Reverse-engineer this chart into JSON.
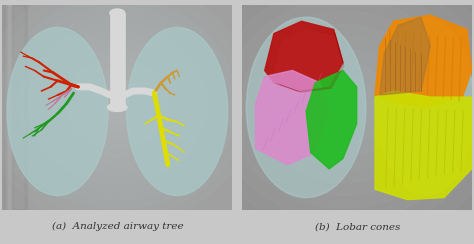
{
  "figsize": [
    4.74,
    2.44
  ],
  "dpi": 100,
  "bg_color_left": "#a8a8a8",
  "bg_color_right": "#909090",
  "caption_a": "(a)  Analyzed airway tree",
  "caption_b": "(b)  Lobar cones",
  "caption_fontsize": 7.5,
  "caption_color": "#333333",
  "lung_color": "#aac8c8",
  "lung_alpha": 0.75,
  "trachea_color": "#d8d8d8",
  "airway_red": "#cc2200",
  "airway_green": "#229922",
  "airway_yellow": "#dddd00",
  "airway_gold": "#cc9933",
  "airway_pink": "#bb7799",
  "lobe_red": "#bb1111",
  "lobe_green": "#22bb22",
  "lobe_pink": "#dd88cc",
  "lobe_orange": "#ee8800",
  "lobe_yellow": "#ccdd00",
  "lobe_brown_orange": "#aa7733",
  "divider_color": "#888888",
  "caption_bg": "#c8c8c8"
}
